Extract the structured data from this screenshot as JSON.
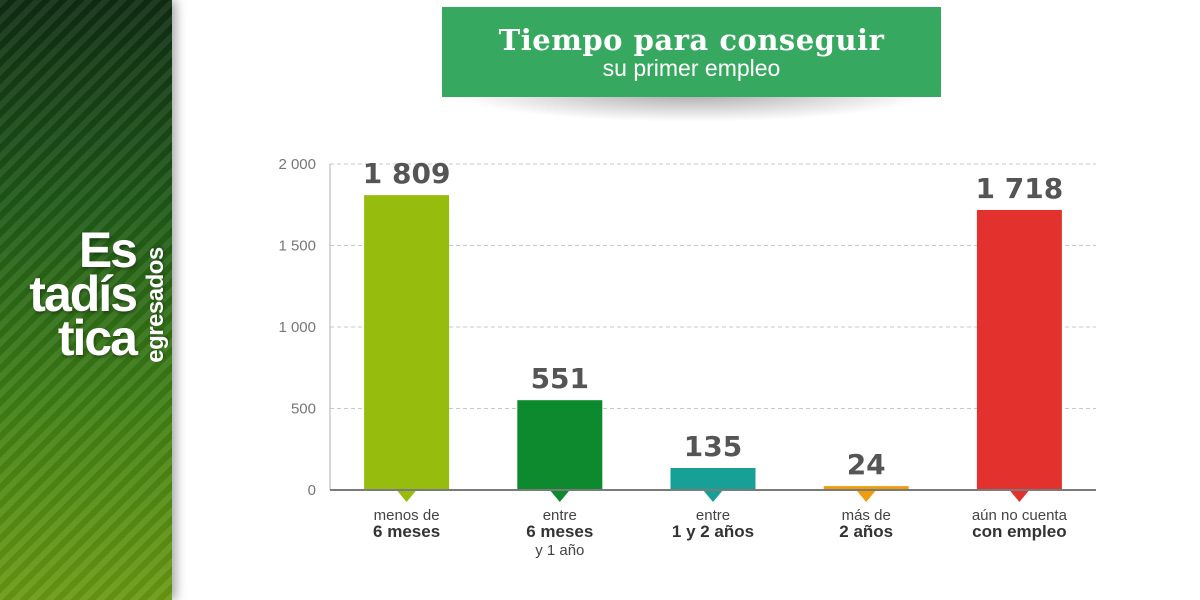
{
  "sidebar": {
    "logo_lines": [
      "Es",
      "tadís",
      "tica"
    ],
    "logo_side": "egresados"
  },
  "title": {
    "line1": "Tiempo para conseguir",
    "line2": "su primer empleo"
  },
  "colors": {
    "banner": "#37a85f",
    "sidebar_dark": "#0f2d12",
    "sidebar_light": "#6a9a12"
  },
  "chart_data": {
    "type": "bar",
    "title": "Tiempo para conseguir su primer empleo",
    "ylim": [
      0,
      2000
    ],
    "yticks": [
      0,
      500,
      1000,
      1500,
      2000
    ],
    "ytick_labels": [
      "0",
      "500",
      "1 000",
      "1 500",
      "2 000"
    ],
    "grid": true,
    "categories": [
      {
        "lines": [
          {
            "text": "menos de",
            "bold": false
          },
          {
            "text": "6 meses",
            "bold": true
          }
        ]
      },
      {
        "lines": [
          {
            "text": "entre",
            "bold": false
          },
          {
            "text": "6 meses",
            "bold": true
          },
          {
            "text": "y 1 año",
            "bold": false
          }
        ]
      },
      {
        "lines": [
          {
            "text": "entre",
            "bold": false
          },
          {
            "text": "1 y 2 años",
            "bold": true
          }
        ]
      },
      {
        "lines": [
          {
            "text": "más de",
            "bold": false
          },
          {
            "text": "2 años",
            "bold": true
          }
        ]
      },
      {
        "lines": [
          {
            "text": "aún no cuenta",
            "bold": false
          },
          {
            "text": "con empleo",
            "bold": true
          }
        ]
      }
    ],
    "values": [
      1809,
      551,
      135,
      24,
      1718
    ],
    "value_labels": [
      "1 809",
      "551",
      "135",
      "24",
      "1 718"
    ],
    "colors": [
      "#96bd0d",
      "#0e8a2e",
      "#17a196",
      "#ee9d0c",
      "#e3322e"
    ]
  }
}
